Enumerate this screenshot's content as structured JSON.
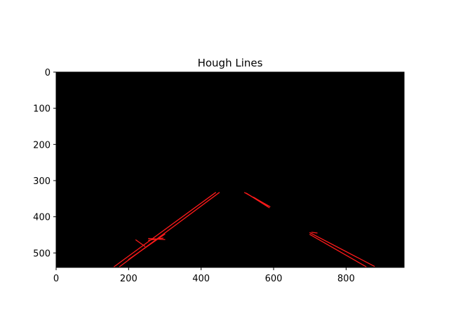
{
  "chart_data": {
    "type": "image",
    "title": "Hough Lines",
    "xlabel": "",
    "ylabel": "",
    "image_width": 960,
    "image_height": 540,
    "xlim": [
      0,
      960
    ],
    "ylim": [
      540,
      0
    ],
    "x_ticks": [
      0,
      200,
      400,
      600,
      800
    ],
    "y_ticks": [
      0,
      100,
      200,
      300,
      400,
      500
    ],
    "grid": false,
    "legend": "none",
    "background_color": "#000000",
    "line_color": "#ff1a1a",
    "segments": [
      {
        "x1": 160,
        "y1": 538,
        "x2": 440,
        "y2": 333
      },
      {
        "x1": 175,
        "y1": 538,
        "x2": 450,
        "y2": 333
      },
      {
        "x1": 200,
        "y1": 518,
        "x2": 300,
        "y2": 448
      },
      {
        "x1": 220,
        "y1": 464,
        "x2": 245,
        "y2": 482
      },
      {
        "x1": 255,
        "y1": 460,
        "x2": 300,
        "y2": 463
      },
      {
        "x1": 255,
        "y1": 465,
        "x2": 295,
        "y2": 459
      },
      {
        "x1": 520,
        "y1": 333,
        "x2": 590,
        "y2": 372
      },
      {
        "x1": 525,
        "y1": 335,
        "x2": 588,
        "y2": 375
      },
      {
        "x1": 545,
        "y1": 346,
        "x2": 585,
        "y2": 370
      },
      {
        "x1": 700,
        "y1": 444,
        "x2": 878,
        "y2": 537
      },
      {
        "x1": 700,
        "y1": 449,
        "x2": 855,
        "y2": 538
      },
      {
        "x1": 705,
        "y1": 443,
        "x2": 720,
        "y2": 445
      }
    ]
  }
}
